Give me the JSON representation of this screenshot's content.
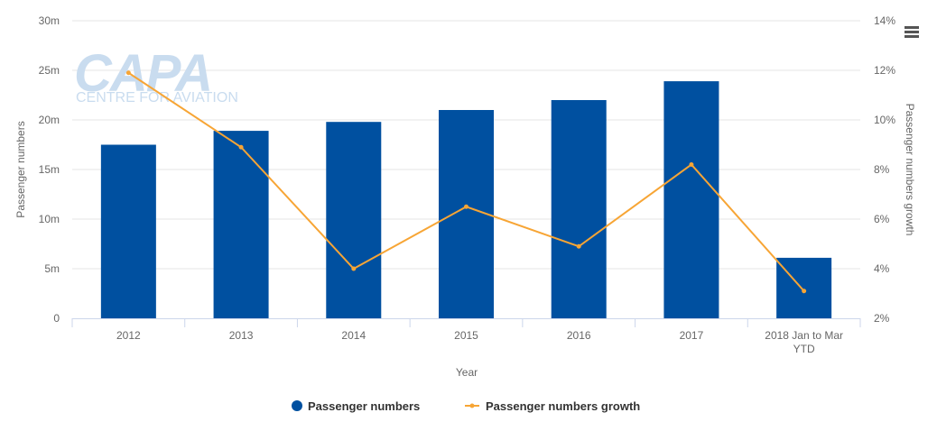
{
  "chart_data": {
    "type": "bar",
    "categories": [
      "2012",
      "2013",
      "2014",
      "2015",
      "2016",
      "2017",
      "2018 Jan to Mar YTD"
    ],
    "category_lines": [
      [
        "2012"
      ],
      [
        "2013"
      ],
      [
        "2014"
      ],
      [
        "2015"
      ],
      [
        "2016"
      ],
      [
        "2017"
      ],
      [
        "2018 Jan to Mar",
        "YTD"
      ]
    ],
    "series": [
      {
        "name": "Passenger numbers",
        "type": "bar",
        "axis": "left",
        "values": [
          17.5,
          18.9,
          19.8,
          21.0,
          22.0,
          23.9,
          6.1
        ],
        "color": "#0050a0"
      },
      {
        "name": "Passenger numbers growth",
        "type": "line",
        "axis": "right",
        "values": [
          11.9,
          8.9,
          4.0,
          6.5,
          4.9,
          8.2,
          3.1
        ],
        "color": "#f7a535"
      }
    ],
    "xlabel": "Year",
    "ylabel": "Passenger numbers",
    "ylabel_right": "Passenger numbers growth",
    "ylim": [
      0,
      30
    ],
    "ylim_right": [
      2,
      14
    ],
    "y_ticks": [
      "0",
      "5m",
      "10m",
      "15m",
      "20m",
      "25m",
      "30m"
    ],
    "y_ticks_right": [
      "2%",
      "4%",
      "6%",
      "8%",
      "10%",
      "12%",
      "14%"
    ],
    "grid": true,
    "legend": "bottom-center"
  },
  "watermark": {
    "logo_text": "CAPA",
    "sub_text": "CENTRE FOR AVIATION",
    "color": "#c9dcef"
  },
  "menu_icon": "hamburger-menu-icon"
}
